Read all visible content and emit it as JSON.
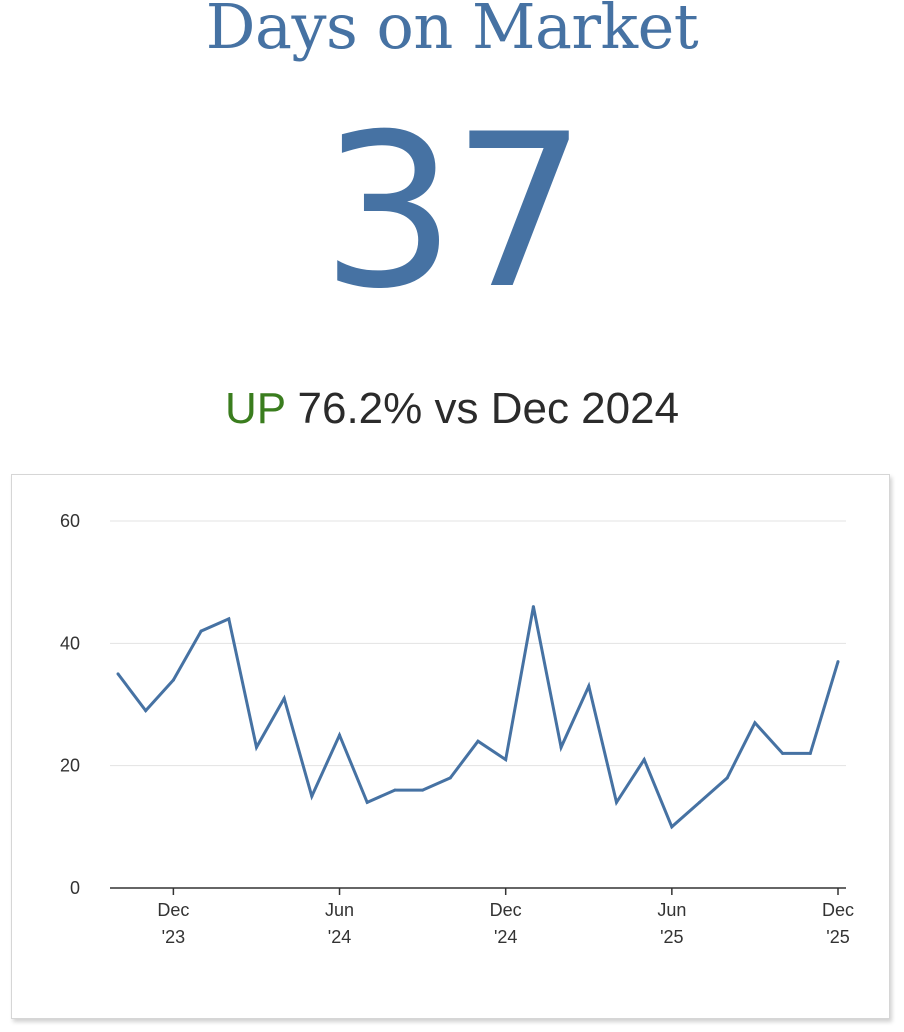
{
  "header": {
    "title": "Days on Market",
    "value": "37",
    "change_direction": "UP",
    "change_text": "76.2% vs Dec 2024"
  },
  "colors": {
    "accent": "#4672a3",
    "up": "#3a7d1e"
  },
  "chart_data": {
    "type": "line",
    "title": "",
    "xlabel": "",
    "ylabel": "",
    "ylim": [
      0,
      60
    ],
    "yticks": [
      "0",
      "20",
      "40",
      "60"
    ],
    "grid": true,
    "x": [
      "Oct 2023",
      "Nov 2023",
      "Dec 2023",
      "Jan 2024",
      "Feb 2024",
      "Mar 2024",
      "Apr 2024",
      "May 2024",
      "Jun 2024",
      "Jul 2024",
      "Aug 2024",
      "Sep 2024",
      "Oct 2024",
      "Nov 2024",
      "Dec 2024",
      "Jan 2025",
      "Feb 2025",
      "Mar 2025",
      "Apr 2025",
      "May 2025",
      "Jun 2025",
      "Jul 2025",
      "Aug 2025",
      "Sep 2025",
      "Oct 2025",
      "Nov 2025",
      "Dec 2025"
    ],
    "xtick_labels": [
      {
        "index": 2,
        "line1": "Dec",
        "line2": "'23"
      },
      {
        "index": 8,
        "line1": "Jun",
        "line2": "'24"
      },
      {
        "index": 14,
        "line1": "Dec",
        "line2": "'24"
      },
      {
        "index": 20,
        "line1": "Jun",
        "line2": "'25"
      },
      {
        "index": 26,
        "line1": "Dec",
        "line2": "'25"
      }
    ],
    "series": [
      {
        "values": [
          35,
          29,
          34,
          42,
          44,
          23,
          31,
          15,
          25,
          14,
          16,
          16,
          18,
          24,
          21,
          46,
          23,
          33,
          14,
          21,
          10,
          14,
          18,
          27,
          22,
          22,
          37
        ]
      }
    ]
  }
}
